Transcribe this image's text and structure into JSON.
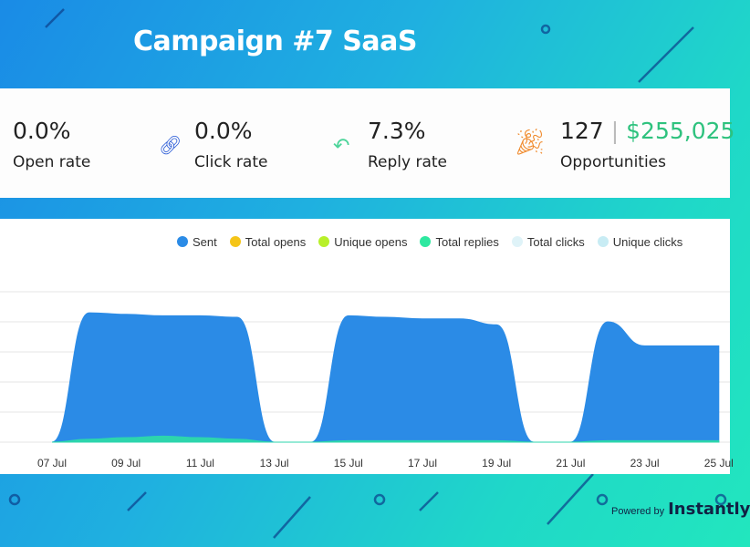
{
  "title": "Campaign #7 SaaS",
  "stats": [
    {
      "value": "0.0%",
      "label": "Open rate",
      "icon": "none"
    },
    {
      "value": "0.0%",
      "label": "Click rate",
      "icon": "link-icon",
      "color": "#2a5bd7"
    },
    {
      "value": "7.3%",
      "label": "Reply rate",
      "icon": "reply-icon",
      "color": "#4cd49a"
    },
    {
      "count": "127",
      "value": "$255,025",
      "label": "Opportunities",
      "icon": "party-popper-icon",
      "color": "#f08a2c"
    }
  ],
  "legend": [
    {
      "name": "Sent",
      "color": "#2b8be6"
    },
    {
      "name": "Total opens",
      "color": "#f5c518"
    },
    {
      "name": "Unique opens",
      "color": "#b8f02a"
    },
    {
      "name": "Total replies",
      "color": "#2ee8a0"
    },
    {
      "name": "Total clicks",
      "color": "#dff3f8"
    },
    {
      "name": "Unique clicks",
      "color": "#c8ecf4"
    }
  ],
  "chart_data": {
    "type": "area",
    "x": [
      "07 Jul",
      "08 Jul",
      "09 Jul",
      "10 Jul",
      "11 Jul",
      "12 Jul",
      "13 Jul",
      "14 Jul",
      "15 Jul",
      "16 Jul",
      "17 Jul",
      "18 Jul",
      "19 Jul",
      "20 Jul",
      "21 Jul",
      "22 Jul",
      "23 Jul",
      "24 Jul",
      "25 Jul"
    ],
    "tick_labels": [
      "07 Jul",
      "09 Jul",
      "11 Jul",
      "13 Jul",
      "15 Jul",
      "17 Jul",
      "19 Jul",
      "21 Jul",
      "23 Jul",
      "25 Jul"
    ],
    "series": [
      {
        "name": "Sent",
        "values": [
          0,
          4.3,
          4.25,
          4.2,
          4.2,
          4.15,
          0,
          0,
          4.2,
          4.15,
          4.1,
          4.1,
          3.9,
          0,
          0,
          4.0,
          3.2,
          3.2,
          3.2
        ]
      },
      {
        "name": "Total replies",
        "values": [
          0,
          0.1,
          0.15,
          0.2,
          0.15,
          0.1,
          0,
          0,
          0.05,
          0.05,
          0.05,
          0.05,
          0.05,
          0,
          0,
          0.05,
          0.05,
          0.05,
          0.05
        ]
      }
    ],
    "ylim": [
      0,
      5
    ],
    "grid": true,
    "legend": "top"
  },
  "footer": {
    "powered": "Powered by",
    "brand": "Instantly"
  }
}
